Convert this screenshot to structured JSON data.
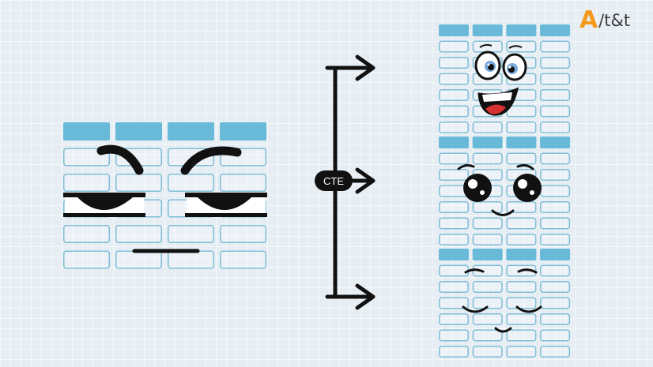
{
  "logo": {
    "letter": "A",
    "rest": "/t&t"
  },
  "connector": {
    "label": "CTE"
  },
  "tables": [
    {
      "id": "source-table",
      "expression": "annoyed",
      "columns": 4,
      "rows": 5
    },
    {
      "id": "result-table-top",
      "expression": "excited",
      "columns": 4,
      "rows": 6
    },
    {
      "id": "result-table-middle",
      "expression": "happy",
      "columns": 4,
      "rows": 6
    },
    {
      "id": "result-table-bottom",
      "expression": "content",
      "columns": 4,
      "rows": 6
    }
  ],
  "colors": {
    "header": "#68bad8",
    "cell_border": "#7fbdd6",
    "ink": "#111111",
    "logo_accent": "#f39a1e",
    "tongue": "#d63030"
  }
}
